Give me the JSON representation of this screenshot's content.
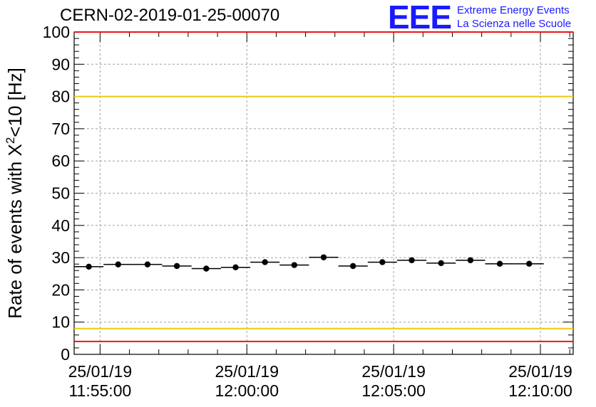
{
  "header": {
    "run_id": "CERN-02-2019-01-25-00070",
    "logo_mark": "EEE",
    "logo_line1": "Extreme Energy Events",
    "logo_line2": "La Scienza nelle Scuole"
  },
  "chart_data": {
    "type": "scatter",
    "title": "CERN-02-2019-01-25-00070",
    "ylabel": "Rate of events with X²<10 [Hz]",
    "xlabel": "",
    "ylim": [
      0,
      100
    ],
    "yticks": [
      0,
      10,
      20,
      30,
      40,
      50,
      60,
      70,
      80,
      90,
      100
    ],
    "xlim": [
      "25/01/19 11:54:07",
      "25/01/19 12:11:07"
    ],
    "xticks": [
      {
        "date": "25/01/19",
        "time": "11:55:00"
      },
      {
        "date": "25/01/19",
        "time": "12:00:00"
      },
      {
        "date": "25/01/19",
        "time": "12:05:00"
      },
      {
        "date": "25/01/19",
        "time": "12:10:00"
      }
    ],
    "grid": true,
    "bin_width_s": 60,
    "series": [
      {
        "points": [
          {
            "x": "11:54:37",
            "y": 27.2
          },
          {
            "x": "11:55:37",
            "y": 27.9
          },
          {
            "x": "11:56:37",
            "y": 27.9
          },
          {
            "x": "11:57:37",
            "y": 27.4
          },
          {
            "x": "11:58:37",
            "y": 26.6
          },
          {
            "x": "11:59:37",
            "y": 27.0
          },
          {
            "x": "12:00:37",
            "y": 28.6
          },
          {
            "x": "12:01:37",
            "y": 27.7
          },
          {
            "x": "12:02:37",
            "y": 30.1
          },
          {
            "x": "12:03:37",
            "y": 27.4
          },
          {
            "x": "12:04:37",
            "y": 28.6
          },
          {
            "x": "12:05:37",
            "y": 29.2
          },
          {
            "x": "12:06:37",
            "y": 28.3
          },
          {
            "x": "12:07:37",
            "y": 29.2
          },
          {
            "x": "12:08:37",
            "y": 28.1
          },
          {
            "x": "12:09:37",
            "y": 28.1
          }
        ]
      }
    ],
    "reference_lines": [
      {
        "y": 100,
        "color": "#e8161b"
      },
      {
        "y": 80,
        "color": "#f0c814"
      },
      {
        "y": 8,
        "color": "#f0c814"
      },
      {
        "y": 4,
        "color": "#e8161b"
      }
    ],
    "colors": {
      "marker": "#000000",
      "grid": "#a0a0a0",
      "logo": "#1a1aff"
    }
  }
}
